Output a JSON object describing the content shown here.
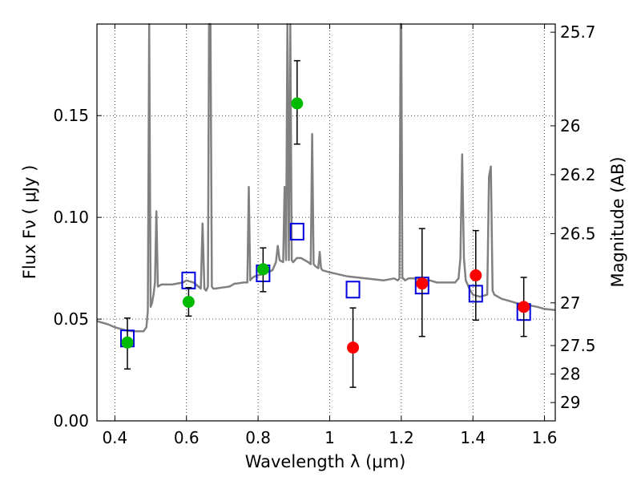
{
  "chart_data": {
    "type": "scatter",
    "xlabel": "Wavelength  λ (μm)",
    "ylabel": "Flux  Fν  ( μJy )",
    "ylabel_right": "Magnitude (AB)",
    "xlim": [
      0.35,
      1.63
    ],
    "ylim": [
      0.0,
      0.195
    ],
    "grid": true,
    "x_ticks": [
      0.4,
      0.6,
      0.8,
      1.0,
      1.2,
      1.4,
      1.6
    ],
    "x_tick_labels": [
      "0.4",
      "0.6",
      "0.8",
      "1",
      "1.2",
      "1.4",
      "1.6"
    ],
    "y_ticks": [
      0.0,
      0.05,
      0.1,
      0.15
    ],
    "y_tick_labels": [
      "0.00",
      "0.05",
      "0.10",
      "0.15"
    ],
    "right_ticks": [
      {
        "label": "25.7",
        "flux": 0.191
      },
      {
        "label": "26",
        "flux": 0.145
      },
      {
        "label": "26.2",
        "flux": 0.121
      },
      {
        "label": "26.5",
        "flux": 0.092
      },
      {
        "label": "27",
        "flux": 0.058
      },
      {
        "label": "27.5",
        "flux": 0.037
      },
      {
        "label": "28",
        "flux": 0.023
      },
      {
        "label": "29",
        "flux": 0.009
      }
    ],
    "series": [
      {
        "color": "#00bb00",
        "points": [
          {
            "x": 0.435,
            "y": 0.0385,
            "yerr_low": 0.0255,
            "yerr_high": 0.0505
          },
          {
            "x": 0.606,
            "y": 0.0585,
            "yerr_low": 0.0515,
            "yerr_high": 0.0655
          },
          {
            "x": 0.814,
            "y": 0.0745,
            "yerr_low": 0.0635,
            "yerr_high": 0.085
          },
          {
            "x": 0.909,
            "y": 0.156,
            "yerr_low": 0.136,
            "yerr_high": 0.177
          }
        ]
      },
      {
        "color": "#ff0000",
        "points": [
          {
            "x": 1.065,
            "y": 0.036,
            "yerr_low": 0.0165,
            "yerr_high": 0.0555
          },
          {
            "x": 1.258,
            "y": 0.0675,
            "yerr_low": 0.0415,
            "yerr_high": 0.0945
          },
          {
            "x": 1.408,
            "y": 0.0715,
            "yerr_low": 0.0495,
            "yerr_high": 0.0935
          },
          {
            "x": 1.542,
            "y": 0.056,
            "yerr_low": 0.0415,
            "yerr_high": 0.0705
          }
        ]
      },
      {
        "color": "#0000dd",
        "marker": "open-square",
        "points": [
          {
            "x": 0.435,
            "y": 0.0405
          },
          {
            "x": 0.606,
            "y": 0.069
          },
          {
            "x": 0.814,
            "y": 0.0725
          },
          {
            "x": 0.909,
            "y": 0.093
          },
          {
            "x": 1.065,
            "y": 0.0645
          },
          {
            "x": 1.258,
            "y": 0.0665
          },
          {
            "x": 1.408,
            "y": 0.0625
          },
          {
            "x": 1.542,
            "y": 0.0535
          }
        ]
      }
    ],
    "spectrum": {
      "color": "#808080",
      "x": [
        0.35,
        0.38,
        0.4,
        0.43,
        0.45,
        0.47,
        0.48,
        0.488,
        0.492,
        0.496,
        0.5,
        0.504,
        0.508,
        0.512,
        0.516,
        0.52,
        0.525,
        0.53,
        0.56,
        0.59,
        0.6,
        0.62,
        0.64,
        0.645,
        0.65,
        0.655,
        0.66,
        0.663,
        0.667,
        0.671,
        0.675,
        0.68,
        0.7,
        0.72,
        0.73,
        0.735,
        0.74,
        0.76,
        0.77,
        0.774,
        0.778,
        0.782,
        0.79,
        0.81,
        0.84,
        0.845,
        0.85,
        0.855,
        0.86,
        0.87,
        0.874,
        0.878,
        0.882,
        0.886,
        0.89,
        0.894,
        0.898,
        0.903,
        0.908,
        0.92,
        0.94,
        0.947,
        0.951,
        0.955,
        0.96,
        0.968,
        0.972,
        0.976,
        0.98,
        1.0,
        1.05,
        1.1,
        1.15,
        1.18,
        1.19,
        1.195,
        1.198,
        1.2,
        1.203,
        1.206,
        1.21,
        1.22,
        1.25,
        1.28,
        1.3,
        1.32,
        1.35,
        1.36,
        1.365,
        1.37,
        1.375,
        1.38,
        1.39,
        1.4,
        1.42,
        1.44,
        1.445,
        1.45,
        1.455,
        1.46,
        1.48,
        1.5,
        1.52,
        1.55,
        1.58,
        1.6,
        1.63
      ],
      "y": [
        0.049,
        0.0475,
        0.046,
        0.0445,
        0.044,
        0.044,
        0.044,
        0.046,
        0.054,
        0.2,
        0.056,
        0.058,
        0.062,
        0.068,
        0.103,
        0.066,
        0.0665,
        0.067,
        0.067,
        0.068,
        0.069,
        0.068,
        0.065,
        0.097,
        0.065,
        0.064,
        0.066,
        0.2,
        0.2,
        0.066,
        0.065,
        0.065,
        0.0655,
        0.066,
        0.067,
        0.0675,
        0.0675,
        0.068,
        0.068,
        0.115,
        0.069,
        0.07,
        0.071,
        0.072,
        0.074,
        0.076,
        0.078,
        0.086,
        0.079,
        0.078,
        0.115,
        0.079,
        0.2,
        0.079,
        0.2,
        0.079,
        0.078,
        0.079,
        0.08,
        0.08,
        0.078,
        0.077,
        0.141,
        0.077,
        0.076,
        0.075,
        0.083,
        0.075,
        0.074,
        0.073,
        0.071,
        0.07,
        0.069,
        0.07,
        0.069,
        0.07,
        0.2,
        0.2,
        0.07,
        0.07,
        0.069,
        0.07,
        0.07,
        0.069,
        0.068,
        0.068,
        0.068,
        0.07,
        0.08,
        0.131,
        0.08,
        0.069,
        0.065,
        0.062,
        0.061,
        0.062,
        0.12,
        0.125,
        0.064,
        0.062,
        0.06,
        0.059,
        0.058,
        0.057,
        0.056,
        0.055,
        0.0545
      ]
    }
  }
}
